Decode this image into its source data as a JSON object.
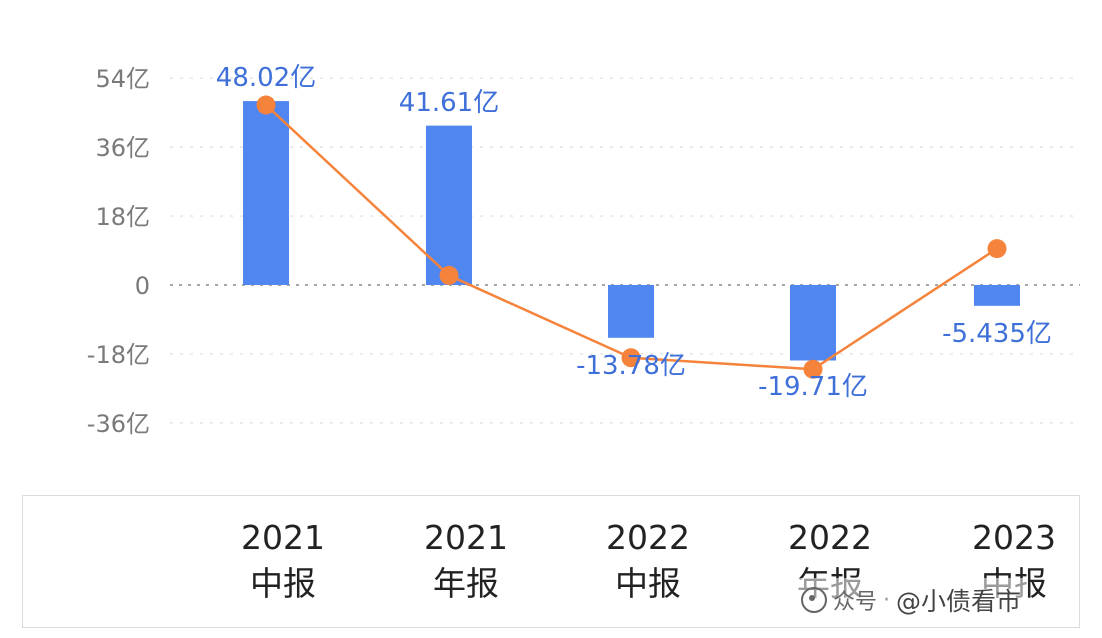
{
  "chart_data": {
    "type": "bar",
    "categories": [
      [
        "2021",
        "中报"
      ],
      [
        "2021",
        "年报"
      ],
      [
        "2022",
        "中报"
      ],
      [
        "2022",
        "年报"
      ],
      [
        "2023",
        "中报"
      ]
    ],
    "series": [
      {
        "name": "",
        "kind": "bar",
        "color": "#4f86f0",
        "values": [
          48.02,
          41.61,
          -13.78,
          -19.71,
          -5.435
        ]
      },
      {
        "name": "",
        "kind": "line",
        "color": "#f5833b",
        "values": [
          47,
          2.5,
          -19,
          -22,
          9.5
        ]
      }
    ],
    "data_labels": [
      "48.02亿",
      "41.61亿",
      "-13.78亿",
      "-19.71亿",
      "-5.435亿"
    ],
    "yticks": [
      {
        "value": 54,
        "label": "54亿"
      },
      {
        "value": 36,
        "label": "36亿"
      },
      {
        "value": 18,
        "label": "18亿"
      },
      {
        "value": 0,
        "label": "0"
      },
      {
        "value": -18,
        "label": "-18亿"
      },
      {
        "value": -36,
        "label": "-36亿"
      }
    ],
    "ylim": [
      -36,
      54
    ],
    "grid": true,
    "title": "",
    "xlabel": "",
    "ylabel": ""
  },
  "watermark": {
    "platform": "众号",
    "separator": "·",
    "account": "@小债看市",
    "icon": "account-logo-icon"
  }
}
